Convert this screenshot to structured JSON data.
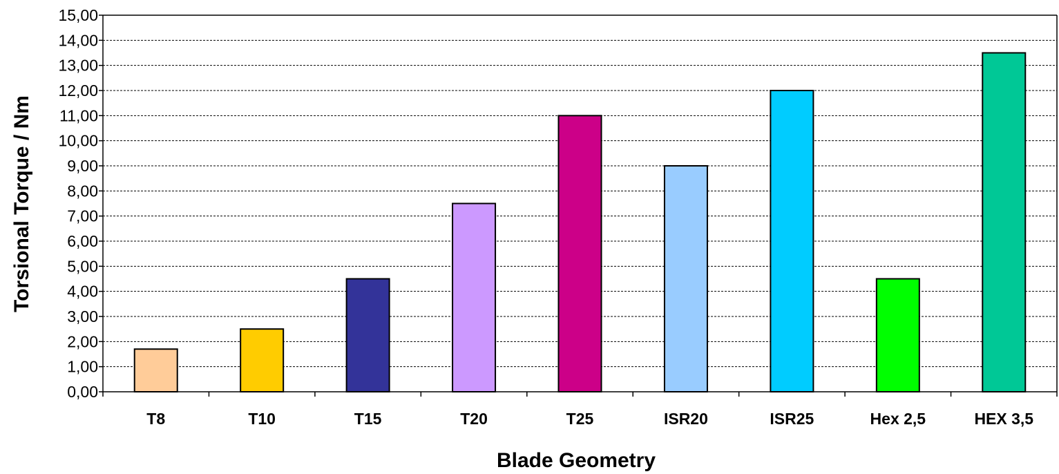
{
  "chart_data": {
    "type": "bar",
    "categories": [
      "T8",
      "T10",
      "T15",
      "T20",
      "T25",
      "ISR20",
      "ISR25",
      "Hex 2,5",
      "HEX 3,5"
    ],
    "values": [
      1.7,
      2.5,
      4.5,
      7.5,
      11.0,
      9.0,
      12.0,
      4.5,
      13.5
    ],
    "colors": [
      "#FFCC99",
      "#FFCC00",
      "#333399",
      "#CC99FF",
      "#CC0088",
      "#99CCFF",
      "#00CCFF",
      "#00FF00",
      "#00C896"
    ],
    "title": "",
    "xlabel": "Blade Geometry",
    "ylabel": "Torsional  Torque / Nm",
    "ylim": [
      0,
      15
    ],
    "ytick_step": 1,
    "ytick_labels": [
      "0,00",
      "1,00",
      "2,00",
      "3,00",
      "4,00",
      "5,00",
      "6,00",
      "7,00",
      "8,00",
      "9,00",
      "10,00",
      "11,00",
      "12,00",
      "13,00",
      "14,00",
      "15,00"
    ],
    "grid": "horizontal-dashed",
    "legend": "none"
  }
}
